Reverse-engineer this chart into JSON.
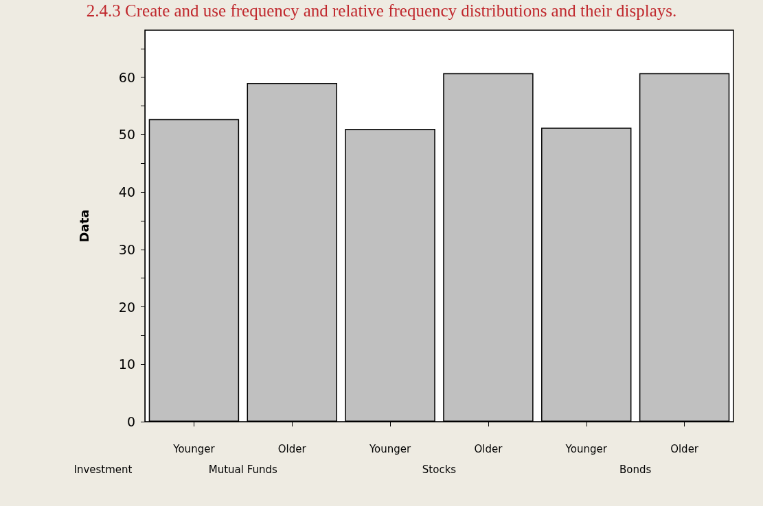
{
  "chart_data": {
    "type": "bar",
    "title": "2.4.3 Create and use frequency and relative frequency distributions and their displays.",
    "xlabel": "Investment",
    "ylabel": "Data",
    "categories": [
      "Younger",
      "Older",
      "Younger",
      "Older",
      "Younger",
      "Older"
    ],
    "values": [
      52.7,
      59.0,
      51.0,
      60.7,
      51.2,
      60.7
    ],
    "color": "#c0c0c0",
    "ylim": [
      0,
      68.2
    ],
    "yticks": [
      0,
      10,
      {
        "value": 15,
        "label": null
      },
      20,
      {
        "value": 25,
        "label": null
      },
      30,
      {
        "value": 35,
        "label": null
      },
      40,
      {
        "value": 45,
        "label": null
      },
      50,
      {
        "value": 55,
        "label": null
      },
      60,
      {
        "value": 65,
        "label": null
      }
    ],
    "annotations": [
      "Mutual Funds",
      "Stocks",
      "Bonds"
    ]
  }
}
